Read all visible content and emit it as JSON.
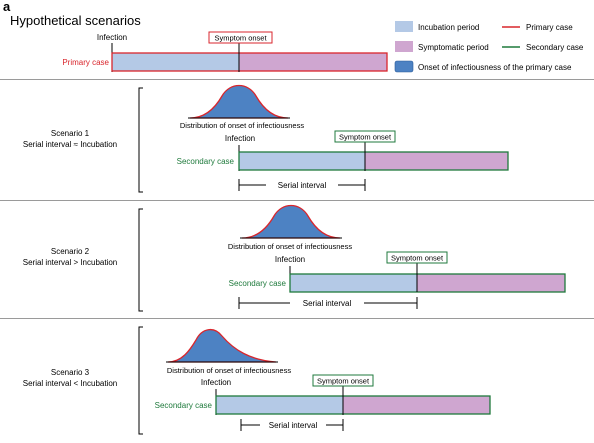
{
  "panel_label": "a",
  "title": "Hypothetical scenarios",
  "legend": {
    "incubation": "Incubation period",
    "symptomatic": "Symptomatic period",
    "onset_infectiousness": "Onset of infectiousness of the primary case",
    "primary_case": "Primary case",
    "secondary_case": "Secondary case"
  },
  "primary": {
    "case_label": "Primary case",
    "infection_label": "Infection",
    "symptom_label": "Symptom onset"
  },
  "scenarios": [
    {
      "name": "Scenario 1",
      "relation": "Serial interval ≈ Incubation",
      "dist_label": "Distribution of onset of infectiousness",
      "infection_label": "Infection",
      "symptom_label": "Symptom onset",
      "case_label": "Secondary case",
      "interval_label": "Serial interval"
    },
    {
      "name": "Scenario 2",
      "relation": "Serial interval > Incubation",
      "dist_label": "Distribution of onset of infectiousness",
      "infection_label": "Infection",
      "symptom_label": "Symptom onset",
      "case_label": "Secondary case",
      "interval_label": "Serial interval"
    },
    {
      "name": "Scenario 3",
      "relation": "Serial interval < Incubation",
      "dist_label": "Distribution of onset of infectiousness",
      "infection_label": "Infection",
      "symptom_label": "Symptom onset",
      "case_label": "Secondary case",
      "interval_label": "Serial interval"
    }
  ],
  "colors": {
    "incubation": "#b4c9e6",
    "symptomatic": "#cfa6d0",
    "onset": "#4d82c3",
    "primary": "#d9262c",
    "secondary": "#1f7a3c",
    "divider": "#9a9a9a"
  }
}
